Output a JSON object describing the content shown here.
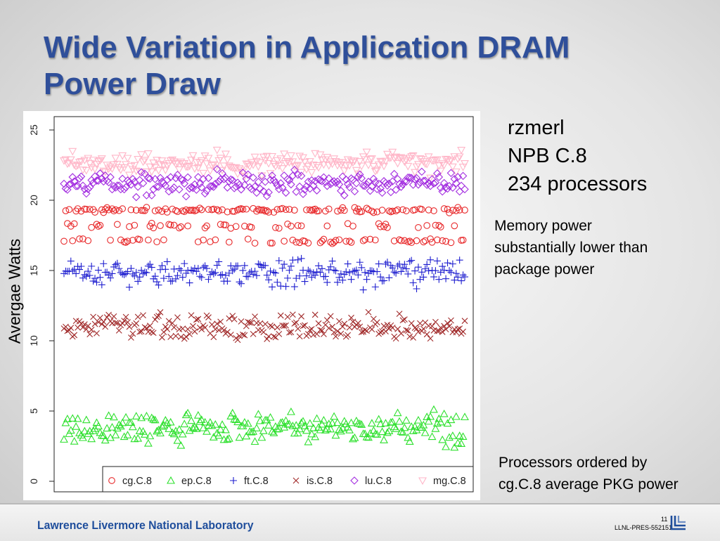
{
  "slide": {
    "title_line1": "Wide Variation in Application DRAM",
    "title_line2": "Power Draw",
    "info": [
      "rzmerl",
      "NPB C.8",
      "234 processors"
    ],
    "note_memory": [
      "Memory power",
      "substantially lower than",
      "package power"
    ],
    "note_order": [
      "Processors ordered by",
      "cg.C.8 average PKG power"
    ],
    "footer": {
      "lab": "Lawrence Livermore National Laboratory",
      "page": "11",
      "code": "LLNL-PRES-552151",
      "logo_icon": "llnl-logo-icon"
    }
  },
  "chart_data": {
    "type": "scatter",
    "ylabel": "Avergae Watts",
    "xlabel": "",
    "ylim": [
      0,
      25
    ],
    "yticks": [
      "0",
      "5",
      "10",
      "15",
      "20",
      "25"
    ],
    "x_count": 234,
    "legend_position": "bottom",
    "series": [
      {
        "name": "cg.C.8",
        "marker": "circle",
        "color": "#e8282a",
        "levels": [
          17.1,
          18.2,
          19.3
        ],
        "level_weights": [
          0.25,
          0.25,
          0.5
        ],
        "jitter": 0.15
      },
      {
        "name": "ep.C.8",
        "marker": "triangle",
        "color": "#2ee02e",
        "center": 3.8,
        "spread": 0.9
      },
      {
        "name": "ft.C.8",
        "marker": "plus",
        "color": "#1c1ccf",
        "center": 14.8,
        "spread": 0.75
      },
      {
        "name": "is.C.8",
        "marker": "x",
        "color": "#a12a2a",
        "center": 11.0,
        "spread": 0.75
      },
      {
        "name": "lu.C.8",
        "marker": "diamond",
        "color": "#a32ee0",
        "center": 21.2,
        "spread": 0.65
      },
      {
        "name": "mg.C.8",
        "marker": "triangle-down",
        "color": "#ffb6c8",
        "center": 22.6,
        "spread": 0.7
      }
    ]
  }
}
